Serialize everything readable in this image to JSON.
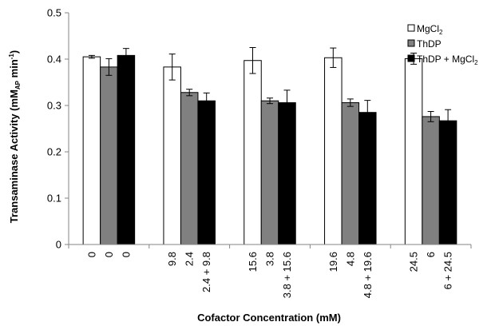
{
  "chart_data": {
    "type": "bar",
    "xlabel": "Cofactor Concentration (mM)",
    "ylabel": {
      "main": "Transaminase Activity (mM",
      "sub": "AP",
      "tail": " min",
      "sup": "-1",
      "close": ")"
    },
    "ylim": [
      0,
      0.5
    ],
    "yticks": [
      "0",
      "0.1",
      "0.2",
      "0.3",
      "0.4",
      "0.5"
    ],
    "ytick_values": [
      0,
      0.1,
      0.2,
      0.3,
      0.4,
      0.5
    ],
    "grid": false,
    "legend_position": "top-right",
    "groups": [
      {
        "bar_labels": [
          "0",
          "0",
          "0"
        ]
      },
      {
        "bar_labels": [
          "9.8",
          "2.4",
          "2.4 + 9.8"
        ]
      },
      {
        "bar_labels": [
          "15.6",
          "3.8",
          "3.8 + 15.6"
        ]
      },
      {
        "bar_labels": [
          "19.6",
          "4.8",
          "4.8 + 19.6"
        ]
      },
      {
        "bar_labels": [
          "24.5",
          "6",
          "6 + 24.5"
        ]
      }
    ],
    "series": [
      {
        "name": "MgCl",
        "name_sub": "2",
        "color": "#ffffff",
        "values": [
          0.405,
          0.383,
          0.397,
          0.403,
          0.401
        ],
        "errors": [
          0.003,
          0.028,
          0.028,
          0.021,
          0.012
        ]
      },
      {
        "name": "ThDP",
        "name_sub": "",
        "color": "#808080",
        "values": [
          0.383,
          0.328,
          0.31,
          0.306,
          0.276
        ],
        "errors": [
          0.018,
          0.007,
          0.006,
          0.008,
          0.011
        ]
      },
      {
        "name": "ThDP + MgCl",
        "name_sub": "2",
        "color": "#000000",
        "values": [
          0.408,
          0.31,
          0.306,
          0.285,
          0.267
        ],
        "errors": [
          0.015,
          0.017,
          0.027,
          0.026,
          0.024
        ]
      }
    ]
  }
}
